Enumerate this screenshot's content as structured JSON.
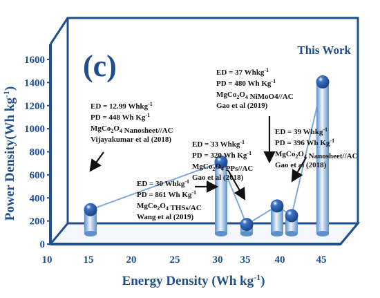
{
  "chart_data": {
    "type": "bar",
    "panel_label": "(c)",
    "xlabel": "Energy Density (Wh kg",
    "xlabel_sup": "-1",
    "xlabel_end": ")",
    "ylabel": "Power Density(Wh kg",
    "ylabel_sup": "-1",
    "ylabel_end": ")",
    "xlim": [
      10,
      45
    ],
    "ylim": [
      0,
      1600
    ],
    "x_ticks": [
      "10",
      "15",
      "20",
      "25",
      "30",
      "35",
      "40",
      "45"
    ],
    "y_ticks": [
      "0",
      "200",
      "400",
      "600",
      "800",
      "1000",
      "1200",
      "1400",
      "1600"
    ],
    "grid": false,
    "points": [
      {
        "x": 12.99,
        "tick": "15",
        "y": 448,
        "annotation": [
          "ED = 12.99 Whkg-1",
          "PD = 448 Wh Kg-1",
          "MgCo2O4 Nanosheet//AC",
          "Vijayakumar et al (2018)"
        ]
      },
      {
        "x": 30,
        "tick": "30",
        "y": 861,
        "annotation": [
          "ED = 30 Whkg-1",
          "PD = 861 Wh Kg-1",
          "MgCo2O4 THSs/AC",
          "Wang et al (2019)"
        ]
      },
      {
        "x": 33,
        "tick": "35",
        "y": 320,
        "annotation": [
          "ED = 33 Whkg-1",
          "PD = 320 Wh Kg-1",
          "MgCo2O4 PPs//AC",
          "Gao et al (2018)"
        ]
      },
      {
        "x": 37,
        "tick": "40",
        "y": 480,
        "annotation": [
          "ED = 37 Whkg-1",
          "PD = 480 Wh Kg-1",
          "MgCo2O4 NiMoO4//AC",
          "Gao et al (2019)"
        ]
      },
      {
        "x": 39,
        "tick": "40",
        "y": 396,
        "annotation": [
          "ED = 39 Whkg-1",
          "PD = 396 Wh Kg-1",
          "MgCo2O4 Nanosheet//AC",
          "Gao et al (2018)"
        ]
      },
      {
        "x": 45,
        "tick": "45",
        "y": 1555,
        "annotation": [
          "This Work"
        ]
      }
    ],
    "colors": {
      "axis": "#1f4e8c",
      "bar_light": "#eef4fb",
      "bar_dark": "#5d8fca",
      "sphere": "#1f56a8",
      "line": "#7fa8dc",
      "background": "#ffffff"
    }
  }
}
